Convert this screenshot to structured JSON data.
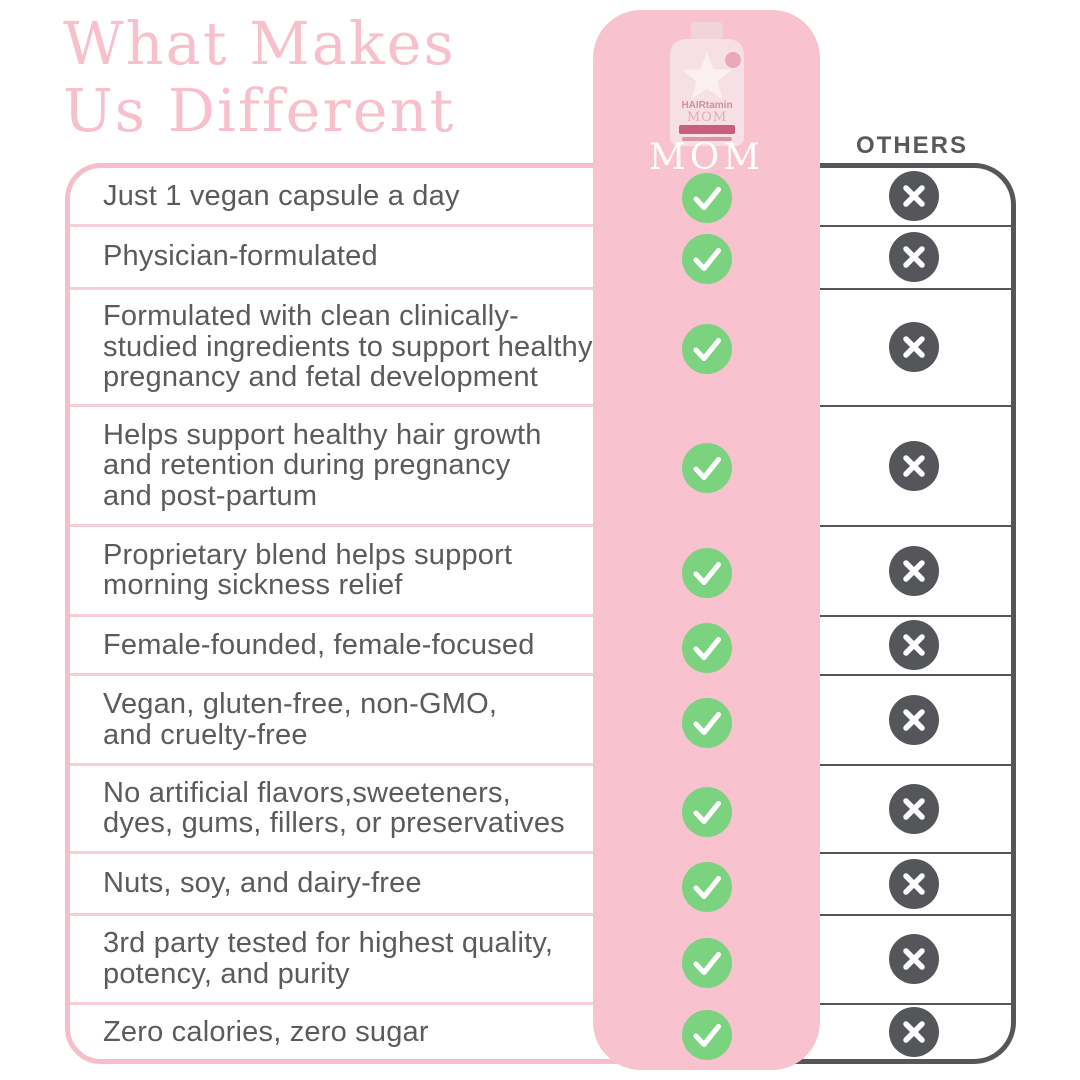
{
  "title": {
    "line1": "What Makes",
    "line2": "Us Different"
  },
  "product_column": {
    "label": "MOM",
    "bottle": {
      "brand_text": "HAIRtamin",
      "product_name": "MOM"
    }
  },
  "others_column": {
    "label": "OTHERS"
  },
  "comparison": {
    "rows": [
      {
        "feature": "Just 1 vegan capsule a day",
        "mom": true,
        "others": false
      },
      {
        "feature": "Physician-formulated",
        "mom": true,
        "others": false
      },
      {
        "feature": "Formulated with clean clinically-\nstudied ingredients to support healthy\npregnancy and fetal development",
        "mom": true,
        "others": false
      },
      {
        "feature": "Helps support healthy hair growth\nand retention during pregnancy\nand post-partum",
        "mom": true,
        "others": false
      },
      {
        "feature": "Proprietary blend helps support\nmorning sickness relief",
        "mom": true,
        "others": false
      },
      {
        "feature": "Female-founded, female-focused",
        "mom": true,
        "others": false
      },
      {
        "feature": "Vegan, gluten-free, non-GMO,\nand cruelty-free",
        "mom": true,
        "others": false
      },
      {
        "feature": "No artificial flavors,sweeteners,\ndyes, gums, fillers, or preservatives",
        "mom": true,
        "others": false
      },
      {
        "feature": "Nuts, soy, and dairy-free",
        "mom": true,
        "others": false
      },
      {
        "feature": "3rd party tested for highest quality,\npotency, and purity",
        "mom": true,
        "others": false
      },
      {
        "feature": "Zero calories, zero sugar",
        "mom": true,
        "others": false
      }
    ]
  },
  "icons": {
    "mom_value": "check-icon",
    "others_value": "x-icon"
  },
  "colors": {
    "title_pink": "#f8bfcc",
    "column_pink": "#f9c2cf",
    "border_pink": "#f5becb",
    "divider_pink": "#f6ced8",
    "check_green": "#7bd27f",
    "dark_gray": "#545659",
    "text_gray": "#5a5b5e",
    "white": "#ffffff"
  }
}
